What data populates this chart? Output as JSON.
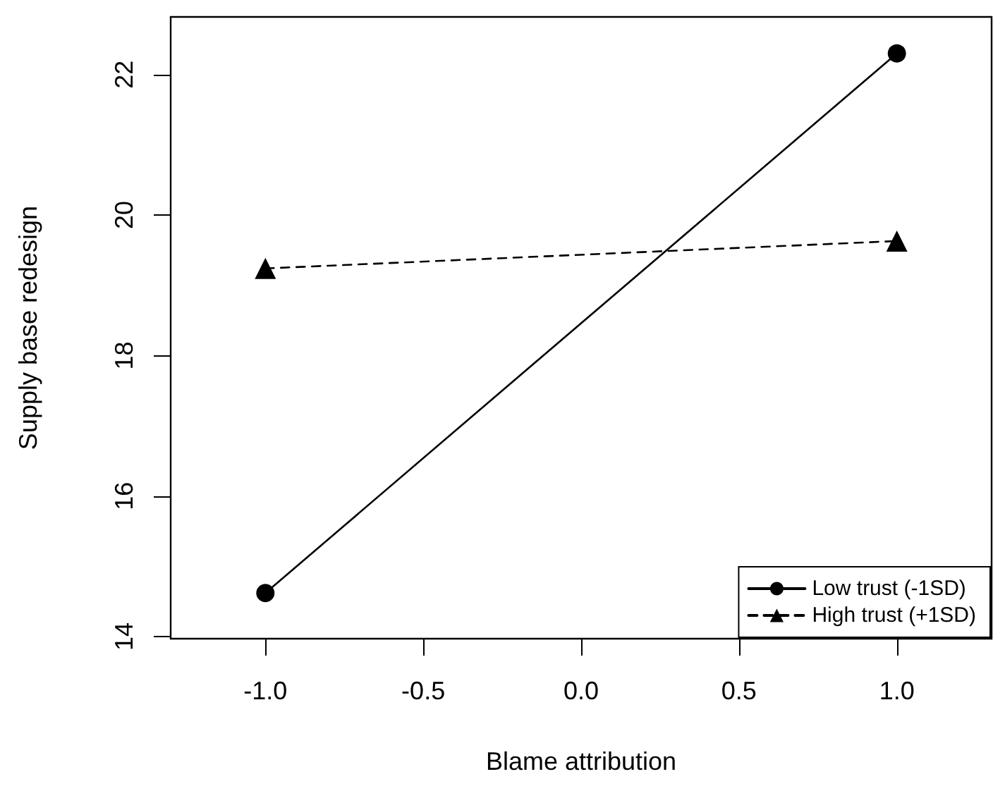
{
  "chart_data": {
    "type": "line",
    "xlabel": "Blame attribution",
    "ylabel": "Supply base redesign",
    "x": [
      -1,
      1
    ],
    "series": [
      {
        "name": "Low trust (-1SD)",
        "color": "#000000",
        "values": [
          14.62,
          22.3
        ],
        "marker": "circle",
        "line_style": "solid"
      },
      {
        "name": "High trust (+1SD)",
        "color": "#000000",
        "values": [
          19.24,
          19.63
        ],
        "marker": "triangle",
        "line_style": "dashed"
      }
    ],
    "xlim": [
      -1.3,
      1.3
    ],
    "ylim": [
      13.97,
      22.82
    ],
    "xticks": [
      {
        "value": -1,
        "label": "-1.0"
      },
      {
        "value": -0.5,
        "label": "-0.5"
      },
      {
        "value": 0,
        "label": "0.0"
      },
      {
        "value": 0.5,
        "label": "0.5"
      },
      {
        "value": 1,
        "label": "1.0"
      }
    ],
    "yticks": [
      14,
      16,
      18,
      20,
      22
    ],
    "grid": false,
    "legend": "bottom right"
  }
}
